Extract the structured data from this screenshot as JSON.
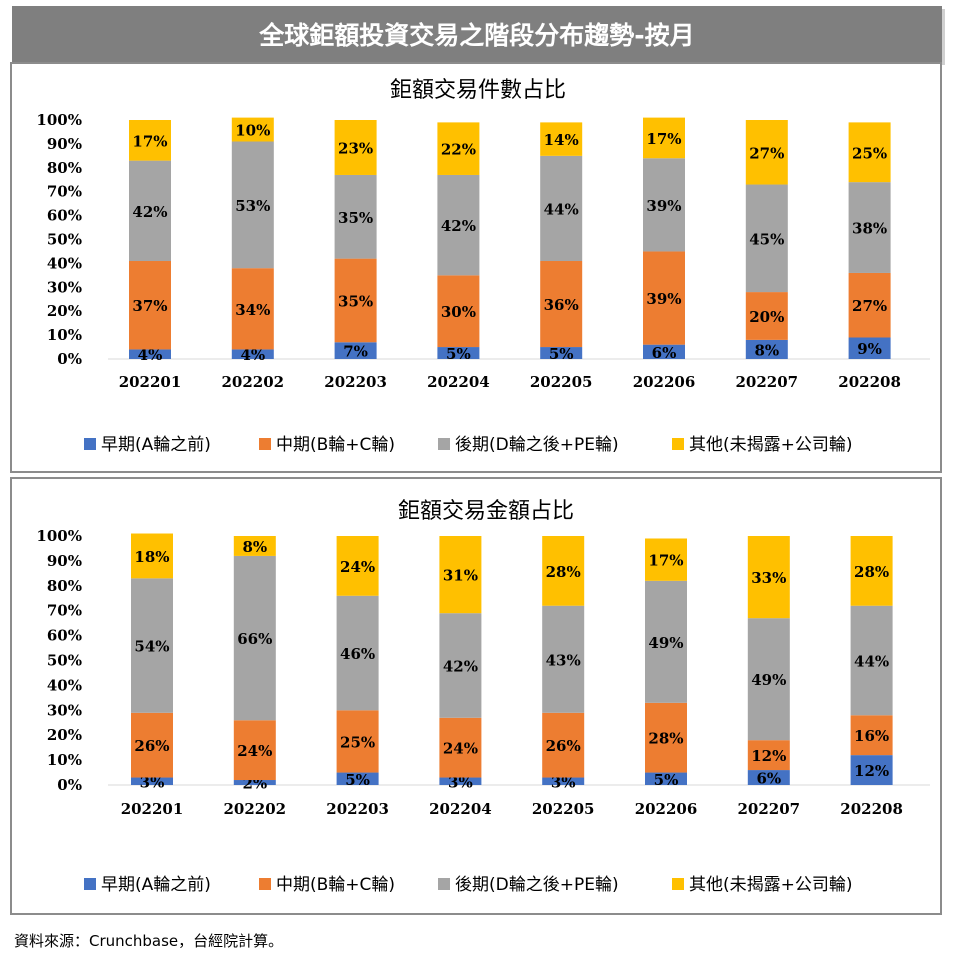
{
  "page_title": "全球鉅額投資交易之階段分布趨勢-按月",
  "source": "資料來源：Crunchbase，台經院計算。",
  "colors": {
    "early": "#4472c4",
    "mid": "#ed7d31",
    "late": "#a5a5a5",
    "other": "#ffc000",
    "banner": "#7f7f7f"
  },
  "chart_data": [
    {
      "type": "bar",
      "stacked": true,
      "title": "鉅額交易件數占比",
      "categories": [
        "202201",
        "202202",
        "202203",
        "202204",
        "202205",
        "202206",
        "202207",
        "202208"
      ],
      "yticks": [
        "0%",
        "10%",
        "20%",
        "30%",
        "40%",
        "50%",
        "60%",
        "70%",
        "80%",
        "90%",
        "100%"
      ],
      "ylim": [
        0,
        100
      ],
      "legend_position": "bottom",
      "series": [
        {
          "name": "早期(A輪之前)",
          "color": "#4472c4",
          "values": [
            4,
            4,
            7,
            5,
            5,
            6,
            8,
            9
          ],
          "labels": [
            "4%",
            "4%",
            "7%",
            "5%",
            "5%",
            "6%",
            "8%",
            "9%"
          ]
        },
        {
          "name": "中期(B輪+C輪)",
          "color": "#ed7d31",
          "values": [
            37,
            34,
            35,
            30,
            36,
            39,
            20,
            27
          ],
          "labels": [
            "37%",
            "34%",
            "35%",
            "30%",
            "36%",
            "39%",
            "20%",
            "27%"
          ]
        },
        {
          "name": "後期(D輪之後+PE輪)",
          "color": "#a5a5a5",
          "values": [
            42,
            53,
            35,
            42,
            44,
            39,
            45,
            38
          ],
          "labels": [
            "42%",
            "53%",
            "35%",
            "42%",
            "44%",
            "39%",
            "45%",
            "38%"
          ]
        },
        {
          "name": "其他(未揭露+公司輪)",
          "color": "#ffc000",
          "values": [
            17,
            10,
            23,
            22,
            14,
            17,
            27,
            25
          ],
          "labels": [
            "17%",
            "10%",
            "23%",
            "22%",
            "14%",
            "17%",
            "27%",
            "25%"
          ]
        }
      ]
    },
    {
      "type": "bar",
      "stacked": true,
      "title": "鉅額交易金額占比",
      "categories": [
        "202201",
        "202202",
        "202203",
        "202204",
        "202205",
        "202206",
        "202207",
        "202208"
      ],
      "yticks": [
        "0%",
        "10%",
        "20%",
        "30%",
        "40%",
        "50%",
        "60%",
        "70%",
        "80%",
        "90%",
        "100%"
      ],
      "ylim": [
        0,
        100
      ],
      "legend_position": "bottom",
      "series": [
        {
          "name": "早期(A輪之前)",
          "color": "#4472c4",
          "values": [
            3,
            2,
            5,
            3,
            3,
            5,
            6,
            12
          ],
          "labels": [
            "3%",
            "2%",
            "5%",
            "3%",
            "3%",
            "5%",
            "6%",
            "12%"
          ]
        },
        {
          "name": "中期(B輪+C輪)",
          "color": "#ed7d31",
          "values": [
            26,
            24,
            25,
            24,
            26,
            28,
            12,
            16
          ],
          "labels": [
            "26%",
            "24%",
            "25%",
            "24%",
            "26%",
            "28%",
            "12%",
            "16%"
          ]
        },
        {
          "name": "後期(D輪之後+PE輪)",
          "color": "#a5a5a5",
          "values": [
            54,
            66,
            46,
            42,
            43,
            49,
            49,
            44
          ],
          "labels": [
            "54%",
            "66%",
            "46%",
            "42%",
            "43%",
            "49%",
            "49%",
            "44%"
          ]
        },
        {
          "name": "其他(未揭露+公司輪)",
          "color": "#ffc000",
          "values": [
            18,
            8,
            24,
            31,
            28,
            17,
            33,
            28
          ],
          "labels": [
            "18%",
            "8%",
            "24%",
            "31%",
            "28%",
            "17%",
            "33%",
            "28%"
          ]
        }
      ]
    }
  ]
}
